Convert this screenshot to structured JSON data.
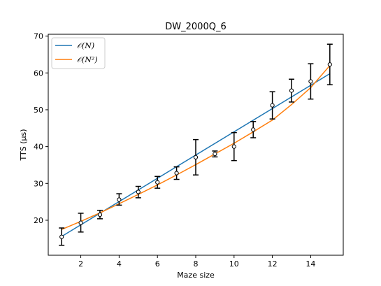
{
  "chart_data": {
    "type": "line",
    "title": "DW_2000Q_6",
    "xlabel": "Maze size",
    "ylabel": "TTS (µs)",
    "xlim": [
      0.3,
      15.7
    ],
    "ylim": [
      10.5,
      70.5
    ],
    "xticks": [
      2,
      4,
      6,
      8,
      10,
      12,
      14
    ],
    "yticks": [
      20,
      30,
      40,
      50,
      60,
      70
    ],
    "legend_position": "top-left",
    "grid": false,
    "points": {
      "name": "measured",
      "x": [
        1,
        2,
        3,
        4,
        5,
        6,
        7,
        8,
        9,
        10,
        11,
        12,
        13,
        14,
        15
      ],
      "y": [
        15.5,
        19.3,
        21.5,
        25.6,
        27.7,
        30.3,
        32.8,
        37.1,
        38.0,
        40.0,
        44.6,
        51.2,
        55.2,
        57.7,
        62.3
      ],
      "err_low": [
        13.2,
        16.8,
        20.4,
        24.1,
        26.1,
        28.7,
        31.1,
        32.3,
        37.2,
        36.2,
        42.4,
        47.5,
        52.1,
        52.9,
        56.8
      ],
      "err_high": [
        17.9,
        21.9,
        22.7,
        27.2,
        29.2,
        31.9,
        34.5,
        41.9,
        38.8,
        43.8,
        46.8,
        54.9,
        58.3,
        62.5,
        67.8
      ]
    },
    "series": [
      {
        "name": "𝒪(N)",
        "color": "#1f77b4",
        "x": [
          1,
          15
        ],
        "y": [
          15.6,
          59.8
        ]
      },
      {
        "name": "𝒪(N²)",
        "color": "#ff7f0e",
        "x": [
          1,
          2,
          3,
          4,
          5,
          6,
          7,
          8,
          9,
          10,
          11,
          12,
          13,
          14,
          15
        ],
        "y": [
          17.5,
          19.7,
          22.0,
          24.5,
          27.0,
          29.6,
          32.3,
          35.1,
          38.0,
          40.9,
          44.0,
          47.2,
          51.4,
          56.0,
          62.0
        ]
      }
    ]
  }
}
